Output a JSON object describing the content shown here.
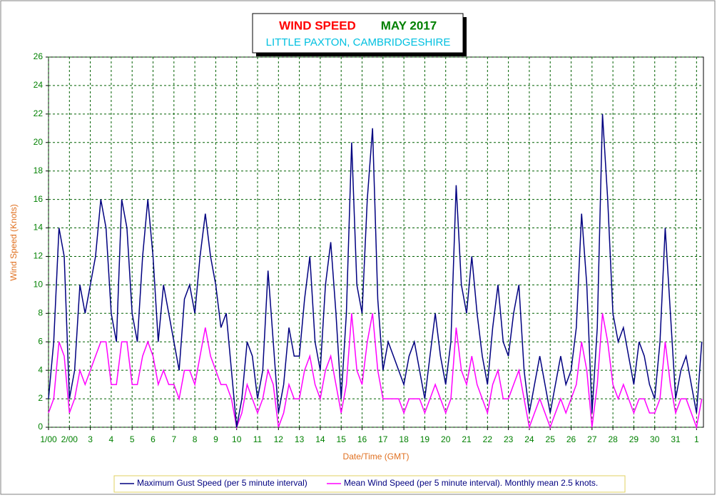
{
  "chart_data": {
    "type": "line",
    "title": "WIND SPEED",
    "period": "MAY 2017",
    "subtitle": "LITTLE PAXTON, CAMBRIDGESHIRE",
    "x_label": "Date/Time (GMT)",
    "y_label": "Wind Speed (Knots)",
    "xlim": [
      1,
      32.33
    ],
    "ylim": [
      0,
      26
    ],
    "xticks": [
      {
        "value": 1,
        "label": "1/00"
      },
      {
        "value": 2,
        "label": "2/00"
      },
      3,
      4,
      5,
      6,
      7,
      8,
      9,
      10,
      11,
      12,
      13,
      14,
      15,
      16,
      17,
      18,
      19,
      20,
      21,
      22,
      23,
      24,
      25,
      26,
      27,
      28,
      29,
      30,
      31,
      {
        "value": 32,
        "label": "1"
      }
    ],
    "yticks": [
      0,
      2,
      4,
      6,
      8,
      10,
      12,
      14,
      16,
      18,
      20,
      22,
      24,
      26
    ],
    "grid": true,
    "x": [
      1,
      1.25,
      1.5,
      1.75,
      2,
      2.25,
      2.5,
      2.75,
      3,
      3.25,
      3.5,
      3.75,
      4,
      4.25,
      4.5,
      4.75,
      5,
      5.25,
      5.5,
      5.75,
      6,
      6.25,
      6.5,
      6.75,
      7,
      7.25,
      7.5,
      7.75,
      8,
      8.25,
      8.5,
      8.75,
      9,
      9.25,
      9.5,
      9.75,
      10,
      10.25,
      10.5,
      10.75,
      11,
      11.25,
      11.5,
      11.75,
      12,
      12.25,
      12.5,
      12.75,
      13,
      13.25,
      13.5,
      13.75,
      14,
      14.25,
      14.5,
      14.75,
      15,
      15.25,
      15.5,
      15.75,
      16,
      16.25,
      16.5,
      16.75,
      17,
      17.25,
      17.5,
      17.75,
      18,
      18.25,
      18.5,
      18.75,
      19,
      19.25,
      19.5,
      19.75,
      20,
      20.25,
      20.5,
      20.75,
      21,
      21.25,
      21.5,
      21.75,
      22,
      22.25,
      22.5,
      22.75,
      23,
      23.25,
      23.5,
      23.75,
      24,
      24.25,
      24.5,
      24.75,
      25,
      25.25,
      25.5,
      25.75,
      26,
      26.25,
      26.5,
      26.75,
      27,
      27.25,
      27.5,
      27.75,
      28,
      28.25,
      28.5,
      28.75,
      29,
      29.25,
      29.5,
      29.75,
      30,
      30.25,
      30.5,
      30.75,
      31,
      31.25,
      31.5,
      31.75,
      32,
      32.25
    ],
    "series": [
      {
        "name": "Maximum Gust Speed (per 5 minute interval)",
        "color": "#000080",
        "values": [
          2,
          6,
          14,
          12,
          2,
          4,
          10,
          8,
          10,
          12,
          16,
          14,
          8,
          6,
          16,
          14,
          8,
          6,
          12,
          16,
          12,
          6,
          10,
          8,
          6,
          4,
          9,
          10,
          8,
          12,
          15,
          12,
          10,
          7,
          8,
          4,
          0,
          2,
          6,
          5,
          2,
          4,
          11,
          6,
          1,
          3,
          7,
          5,
          5,
          9,
          12,
          6,
          4,
          10,
          13,
          8,
          2,
          8,
          20,
          10,
          8,
          16,
          21,
          9,
          4,
          6,
          5,
          4,
          3,
          5,
          6,
          4,
          2,
          5,
          8,
          5,
          3,
          6,
          17,
          10,
          8,
          12,
          8,
          5,
          3,
          7,
          10,
          6,
          5,
          8,
          10,
          4,
          1,
          3,
          5,
          3,
          1,
          3,
          5,
          3,
          4,
          7,
          15,
          10,
          1,
          7,
          22,
          16,
          8,
          6,
          7,
          5,
          3,
          6,
          5,
          3,
          2,
          6,
          14,
          8,
          2,
          4,
          5,
          3,
          1,
          6
        ]
      },
      {
        "name": "Mean Wind Speed (per 5 minute interval). Monthly mean 2.5 knots.",
        "color": "#ff00ff",
        "values": [
          1,
          2,
          6,
          5,
          1,
          2,
          4,
          3,
          4,
          5,
          6,
          6,
          3,
          3,
          6,
          6,
          3,
          3,
          5,
          6,
          5,
          3,
          4,
          3,
          3,
          2,
          4,
          4,
          3,
          5,
          7,
          5,
          4,
          3,
          3,
          2,
          0,
          1,
          3,
          2,
          1,
          2,
          4,
          3,
          0,
          1,
          3,
          2,
          2,
          4,
          5,
          3,
          2,
          4,
          5,
          3,
          1,
          3,
          8,
          4,
          3,
          6,
          8,
          4,
          2,
          2,
          2,
          2,
          1,
          2,
          2,
          2,
          1,
          2,
          3,
          2,
          1,
          2,
          7,
          4,
          3,
          5,
          3,
          2,
          1,
          3,
          4,
          2,
          2,
          3,
          4,
          2,
          0,
          1,
          2,
          1,
          0,
          1,
          2,
          1,
          2,
          3,
          6,
          4,
          0,
          3,
          8,
          6,
          3,
          2,
          3,
          2,
          1,
          2,
          2,
          1,
          1,
          2,
          6,
          3,
          1,
          2,
          2,
          1,
          0,
          2
        ]
      }
    ]
  }
}
